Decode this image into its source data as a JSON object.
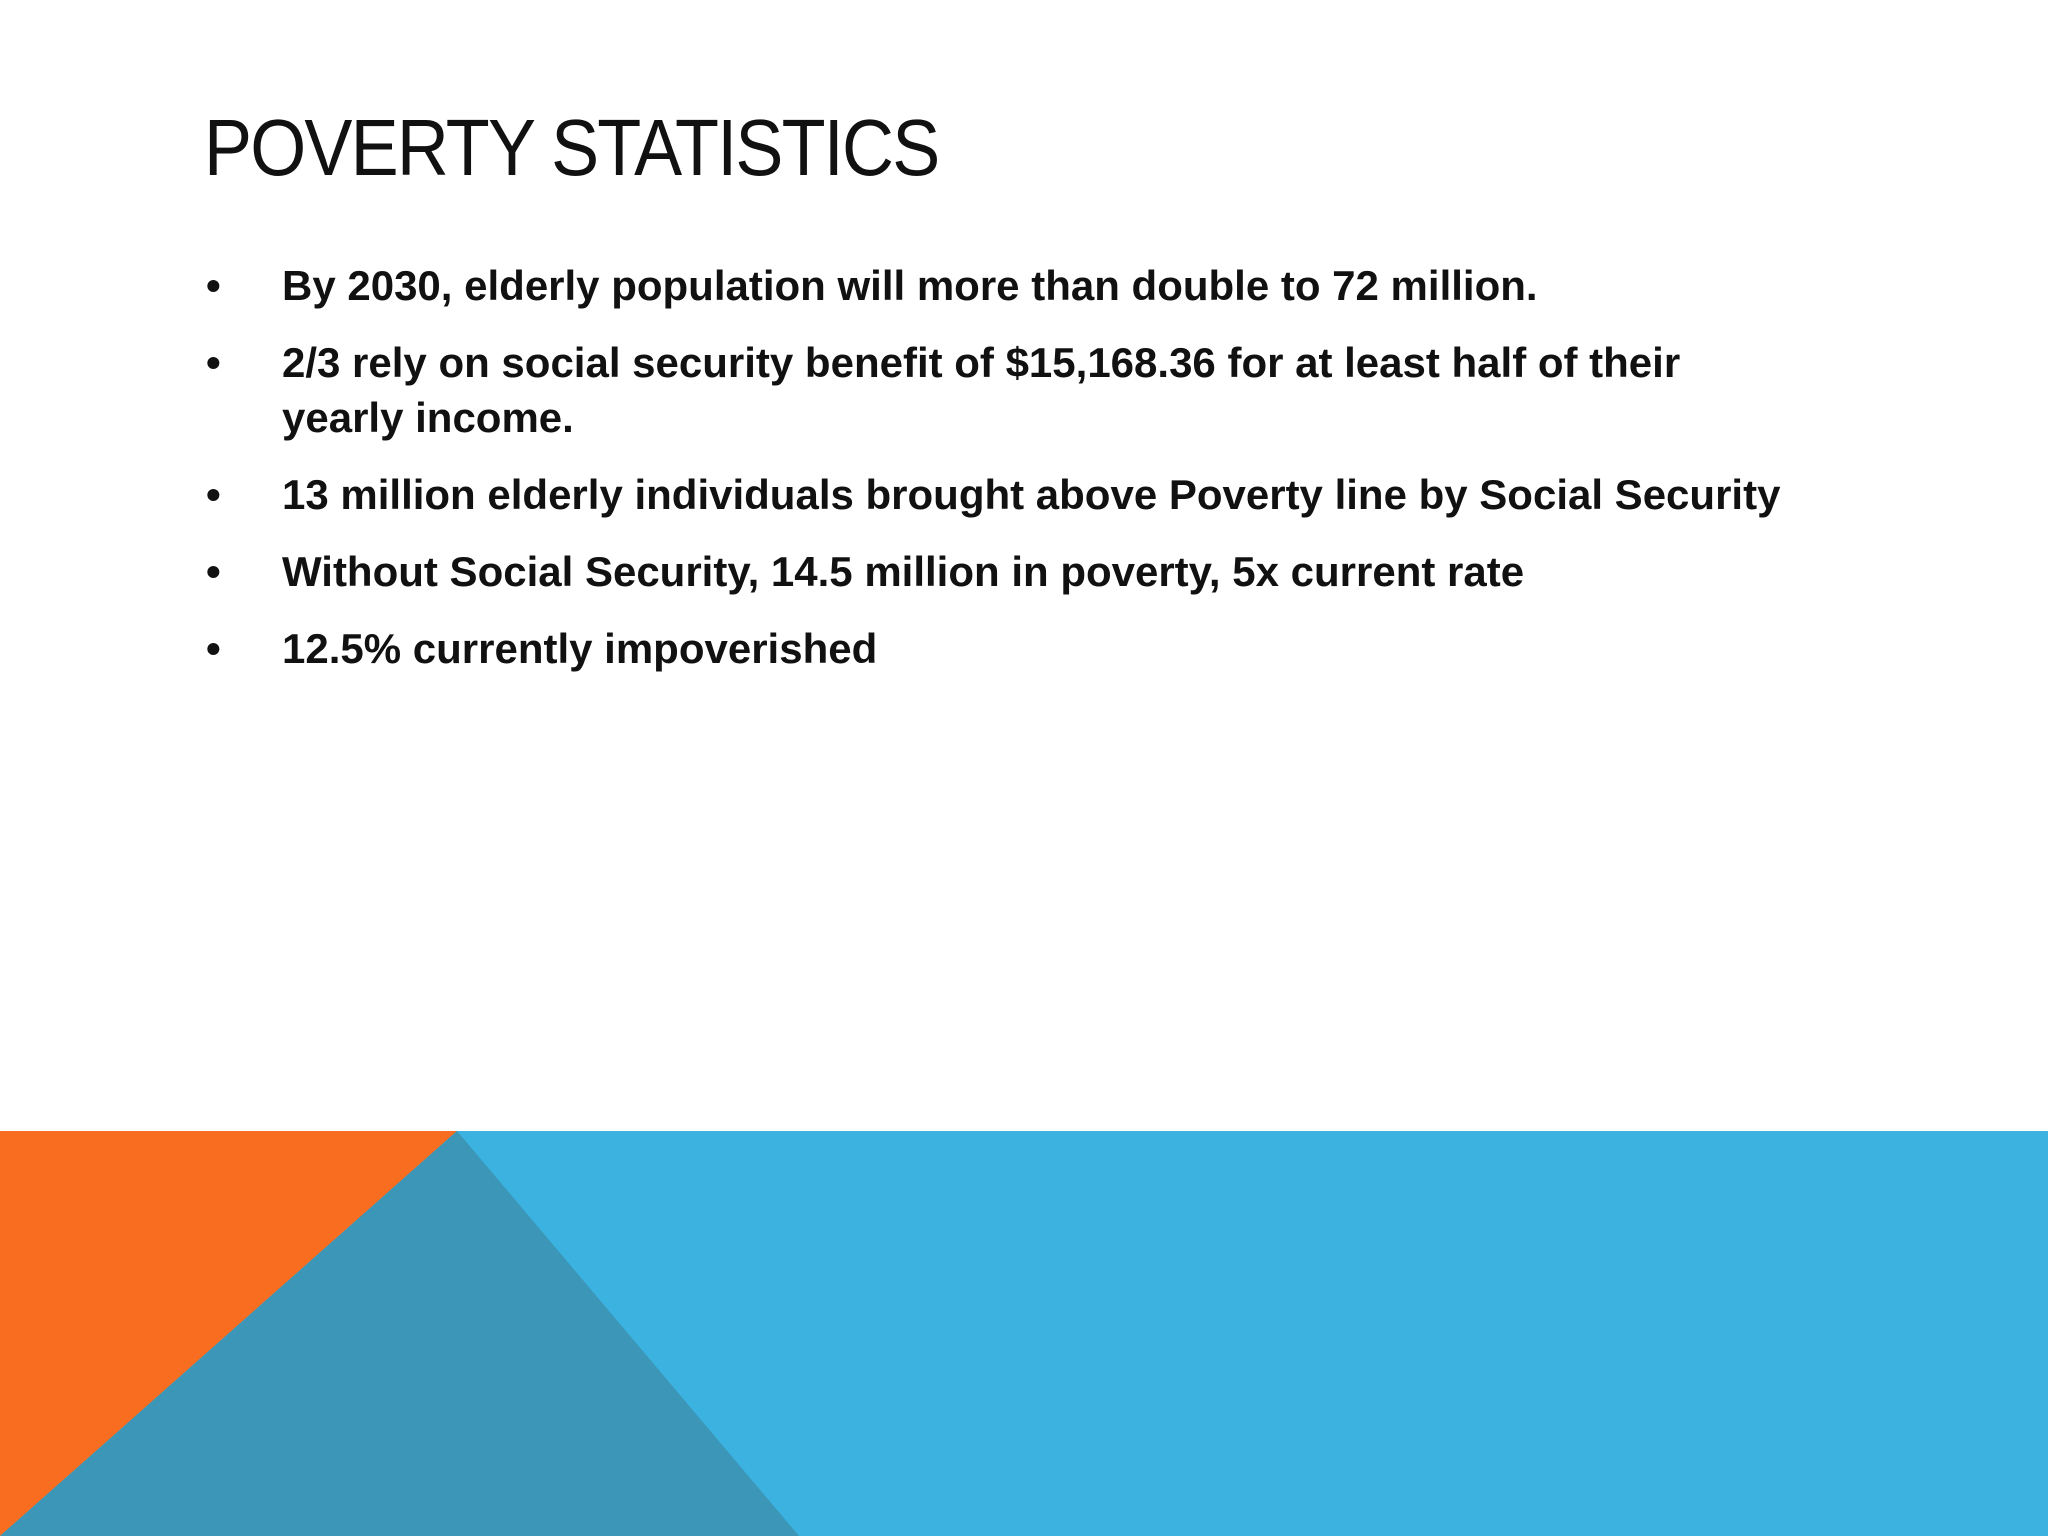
{
  "title": "POVERTY STATISTICS",
  "bullets": [
    "By 2030, elderly population will more than double to 72 million.",
    "2/3 rely on social security benefit of $15,168.36 for at least half of their yearly income.",
    "13 million elderly individuals brought above Poverty line by Social Security",
    "Without Social Security, 14.5 million in poverty, 5x current rate",
    "12.5% currently impoverished"
  ]
}
